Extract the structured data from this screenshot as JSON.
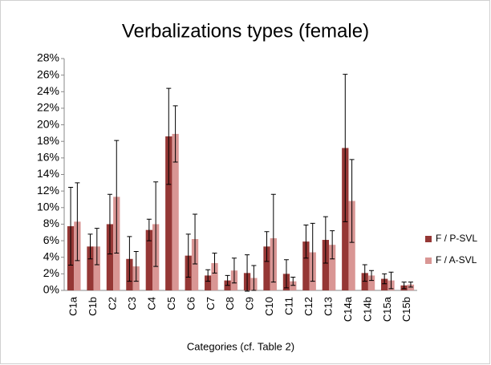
{
  "chart_data": {
    "type": "bar",
    "title": "Verbalizations types (female)",
    "xlabel": "Categories (cf. Table 2)",
    "categories": [
      "C1a",
      "C1b",
      "C2",
      "C3",
      "C4",
      "C5",
      "C6",
      "C7",
      "C8",
      "C9",
      "C10",
      "C11",
      "C12",
      "C13",
      "C14a",
      "C14b",
      "C15a",
      "C15b"
    ],
    "series": [
      {
        "name": "F / P-SVL",
        "color": "#953735",
        "values": [
          7.75,
          5.3,
          8.0,
          3.8,
          7.3,
          18.6,
          4.2,
          1.8,
          1.2,
          2.1,
          5.3,
          2.0,
          5.9,
          6.1,
          17.2,
          2.1,
          1.4,
          0.6
        ],
        "errors": [
          4.7,
          1.5,
          3.6,
          2.7,
          1.3,
          5.8,
          2.6,
          0.7,
          0.6,
          2.2,
          1.8,
          1.7,
          2.0,
          2.8,
          8.9,
          1.0,
          0.6,
          0.4
        ]
      },
      {
        "name": "F / A-SVL",
        "color": "#d99694",
        "values": [
          8.3,
          5.3,
          11.3,
          2.9,
          8.0,
          18.9,
          6.2,
          3.3,
          2.4,
          1.5,
          6.3,
          1.1,
          4.6,
          5.5,
          10.8,
          1.8,
          1.2,
          0.7
        ],
        "errors": [
          4.7,
          2.2,
          6.8,
          1.8,
          5.1,
          3.4,
          3.0,
          1.2,
          1.5,
          1.5,
          5.3,
          0.5,
          3.5,
          1.7,
          5.0,
          0.6,
          1.0,
          0.3
        ]
      }
    ],
    "ylim": [
      0,
      28
    ],
    "yticks": [
      {
        "value": 0,
        "label": "0%"
      },
      {
        "value": 2,
        "label": "2%"
      },
      {
        "value": 4,
        "label": "4%"
      },
      {
        "value": 6,
        "label": "6%"
      },
      {
        "value": 8,
        "label": "8%"
      },
      {
        "value": 10,
        "label": "10%"
      },
      {
        "value": 12,
        "label": "12%"
      },
      {
        "value": 14,
        "label": "14%"
      },
      {
        "value": 16,
        "label": "16%"
      },
      {
        "value": 18,
        "label": "18%"
      },
      {
        "value": 20,
        "label": "20%"
      },
      {
        "value": 22,
        "label": "22%"
      },
      {
        "value": 24,
        "label": "24%"
      },
      {
        "value": 26,
        "label": "26%"
      },
      {
        "value": 28,
        "label": "28%"
      }
    ],
    "legend": "right"
  }
}
